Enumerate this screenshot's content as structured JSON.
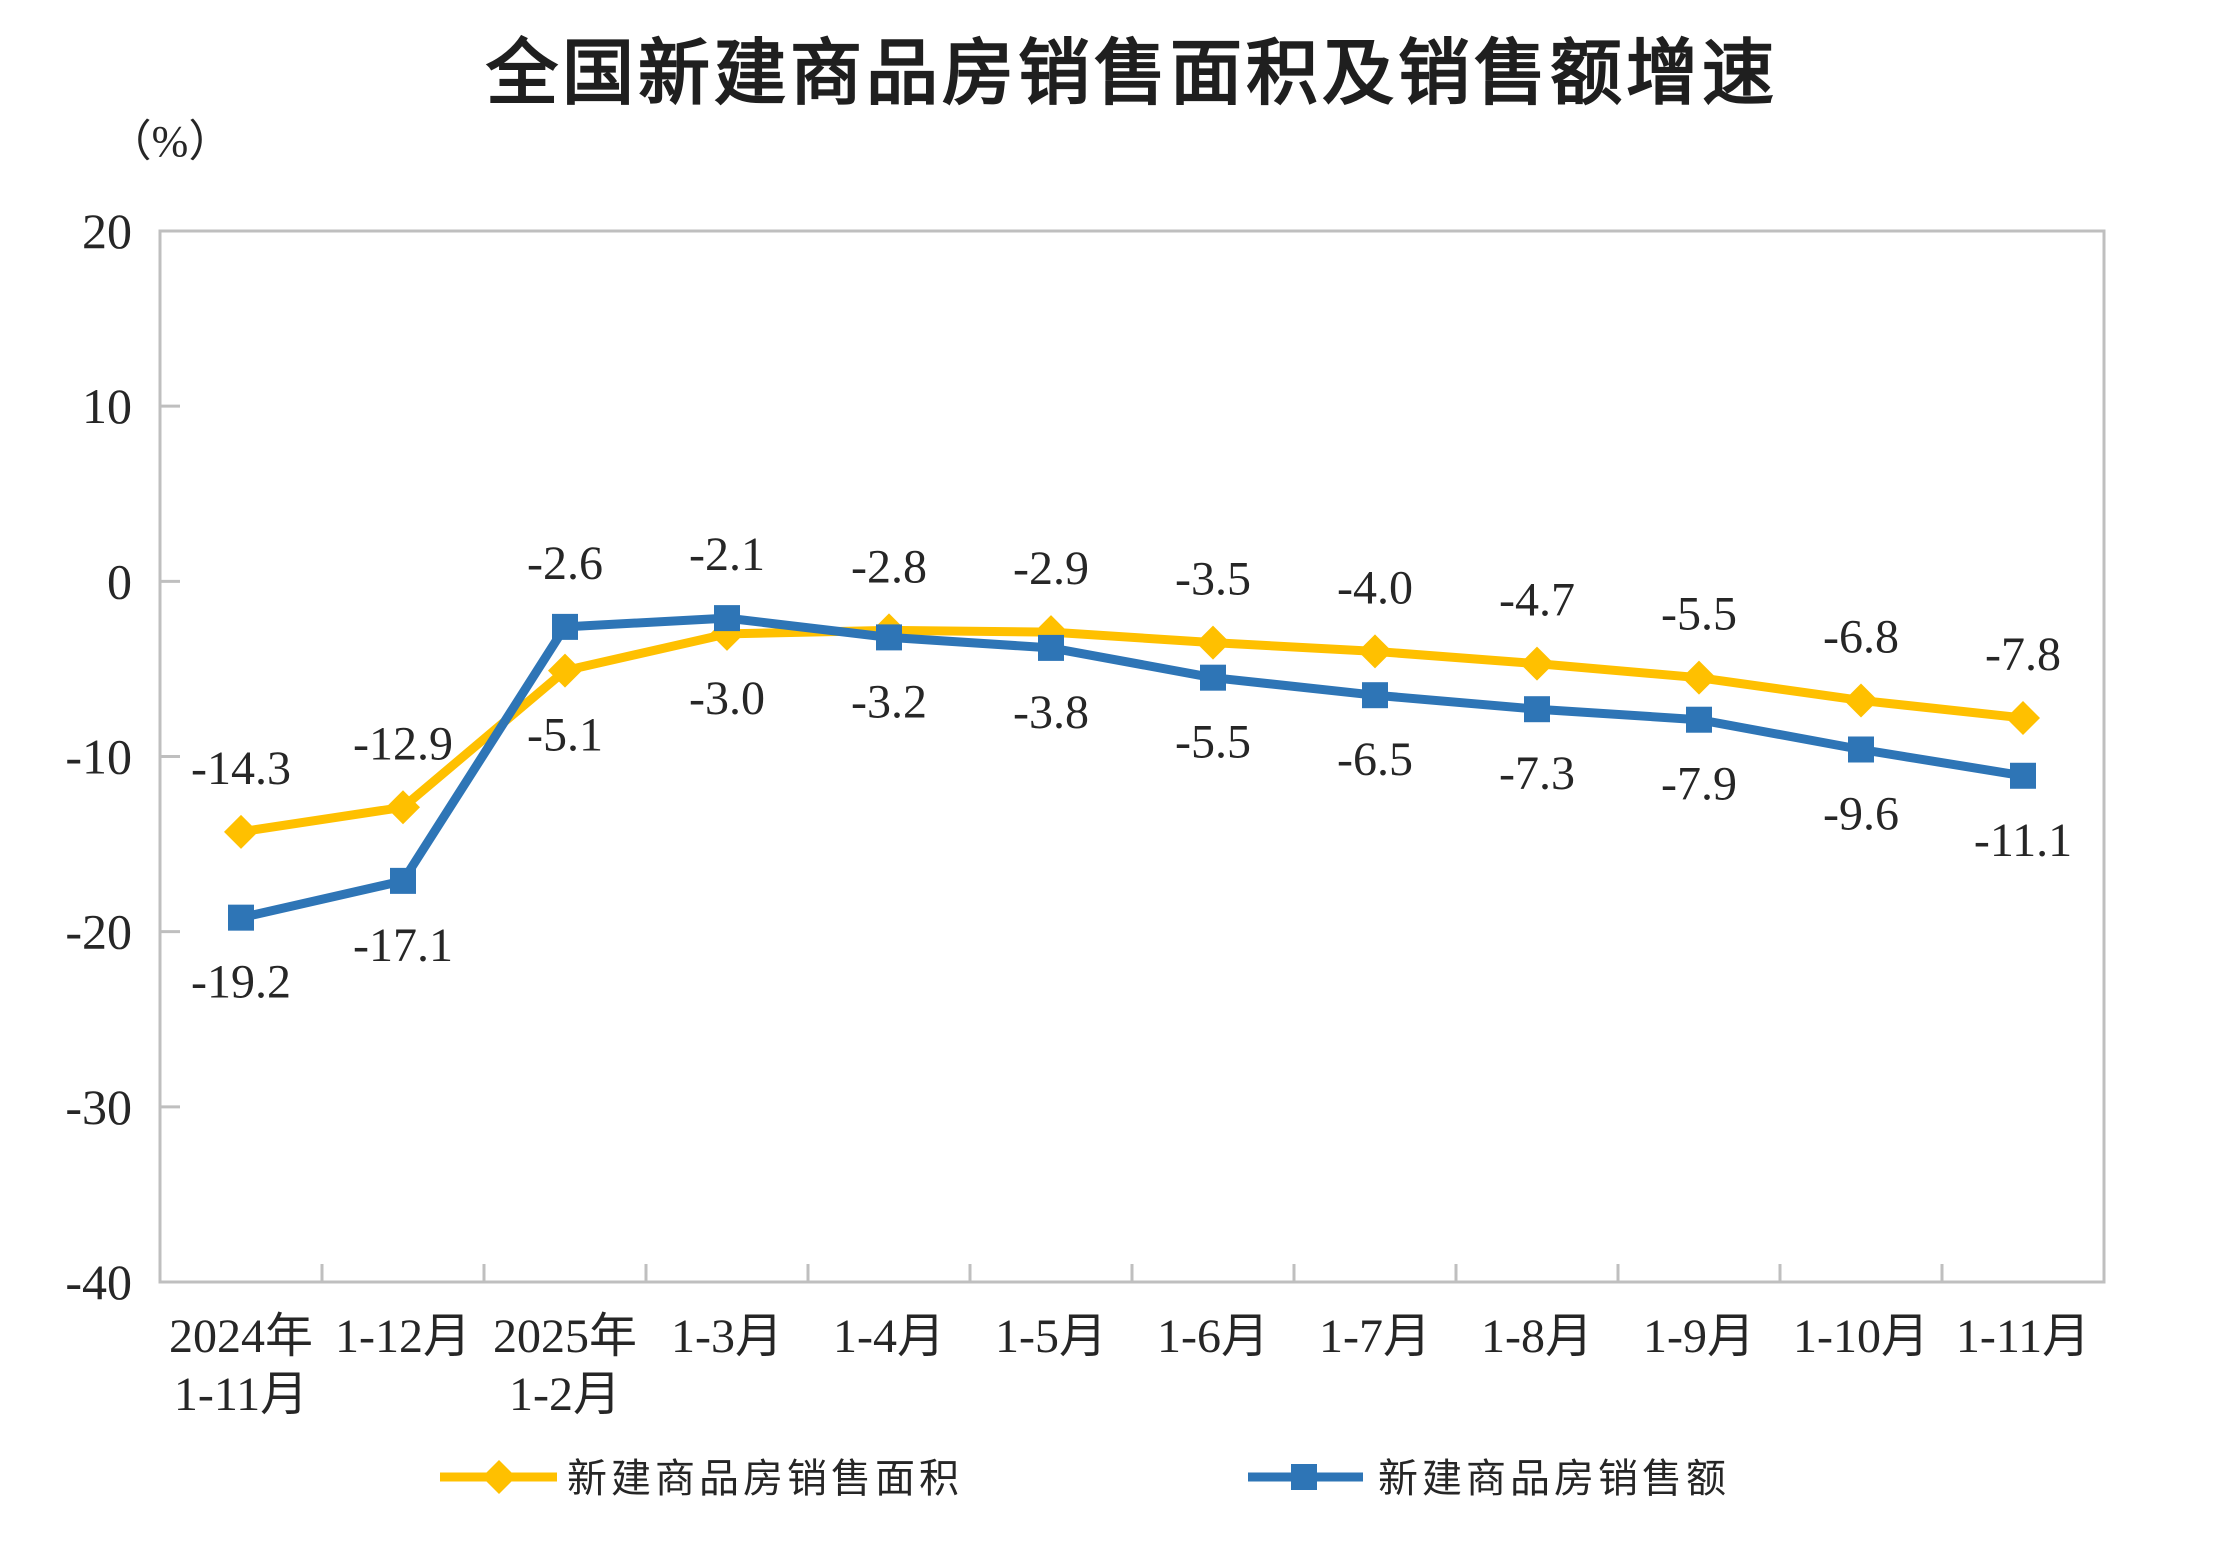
{
  "title": "全国新建商品房销售面积及销售额增速",
  "unit_label": "（%）",
  "colors": {
    "series_area": "#FFC000",
    "series_amount": "#2E75B6",
    "axis": "#BFBFBF",
    "text": "#262626"
  },
  "chart_data": {
    "type": "line",
    "title": "全国新建商品房销售面积及销售额增速",
    "ylabel": "（%）",
    "xlabel": "",
    "grid": false,
    "legend_position": "bottom",
    "ylim": [
      -40,
      20
    ],
    "yticks": [
      20,
      10,
      0,
      -10,
      -20,
      -30,
      -40
    ],
    "categories": [
      "2024年\n1-11月",
      "1-12月",
      "2025年\n1-2月",
      "1-3月",
      "1-4月",
      "1-5月",
      "1-6月",
      "1-7月",
      "1-8月",
      "1-9月",
      "1-10月",
      "1-11月"
    ],
    "series": [
      {
        "name": "新建商品房销售面积",
        "color": "#FFC000",
        "marker": "diamond",
        "values": [
          -14.3,
          -12.9,
          -5.1,
          -3.0,
          -2.8,
          -2.9,
          -3.5,
          -4.0,
          -4.7,
          -5.5,
          -6.8,
          -7.8
        ]
      },
      {
        "name": "新建商品房销售额",
        "color": "#2E75B6",
        "marker": "square",
        "values": [
          -19.2,
          -17.1,
          -2.6,
          -2.1,
          -3.2,
          -3.8,
          -5.5,
          -6.5,
          -7.3,
          -7.9,
          -9.6,
          -11.1
        ]
      }
    ]
  }
}
